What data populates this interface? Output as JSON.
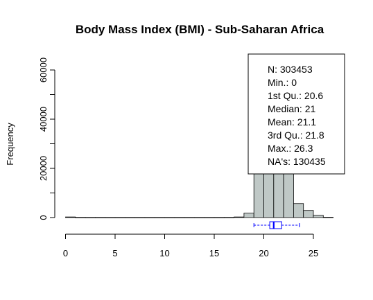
{
  "chart_data": {
    "type": "bar",
    "title": "Body Mass Index (BMI) - Sub-Saharan Africa",
    "xlabel": "",
    "ylabel": "Frequency",
    "xlim": [
      0,
      27
    ],
    "ylim": [
      0,
      60000
    ],
    "x_ticks": [
      "0",
      "5",
      "10",
      "15",
      "20",
      "25"
    ],
    "y_ticks": [
      "0",
      "20000",
      "40000",
      "60000"
    ],
    "bin_width": 1,
    "bins": [
      {
        "start": 0,
        "count": 250
      },
      {
        "start": 1,
        "count": 60
      },
      {
        "start": 2,
        "count": 40
      },
      {
        "start": 3,
        "count": 40
      },
      {
        "start": 4,
        "count": 30
      },
      {
        "start": 5,
        "count": 30
      },
      {
        "start": 6,
        "count": 30
      },
      {
        "start": 7,
        "count": 30
      },
      {
        "start": 8,
        "count": 30
      },
      {
        "start": 9,
        "count": 30
      },
      {
        "start": 10,
        "count": 30
      },
      {
        "start": 11,
        "count": 30
      },
      {
        "start": 12,
        "count": 30
      },
      {
        "start": 13,
        "count": 30
      },
      {
        "start": 14,
        "count": 30
      },
      {
        "start": 15,
        "count": 40
      },
      {
        "start": 16,
        "count": 60
      },
      {
        "start": 17,
        "count": 250
      },
      {
        "start": 18,
        "count": 1800
      },
      {
        "start": 19,
        "count": 22000
      },
      {
        "start": 20,
        "count": 60000
      },
      {
        "start": 21,
        "count": 60000
      },
      {
        "start": 22,
        "count": 22000
      },
      {
        "start": 23,
        "count": 5700
      },
      {
        "start": 24,
        "count": 2900
      },
      {
        "start": 25,
        "count": 900
      },
      {
        "start": 26,
        "count": 120
      }
    ],
    "boxplot": {
      "min": 19.0,
      "q1": 20.6,
      "median": 21,
      "q3": 21.8,
      "max": 23.6
    },
    "stats_box": [
      {
        "label": "N:",
        "value": "303453"
      },
      {
        "label": "Min.:",
        "value": "0"
      },
      {
        "label": "1st Qu.:",
        "value": "20.6"
      },
      {
        "label": "Median:",
        "value": "21"
      },
      {
        "label": "Mean:",
        "value": "21.1"
      },
      {
        "label": "3rd Qu.:",
        "value": "21.8"
      },
      {
        "label": "Max.:",
        "value": "26.3"
      },
      {
        "label": "NA's:",
        "value": "130435"
      }
    ],
    "stats_placement": "top-right",
    "colors": {
      "bar_fill": "#bfc8c6",
      "bar_stroke": "#000000",
      "box_stroke": "#0000ff"
    },
    "grid": false
  }
}
